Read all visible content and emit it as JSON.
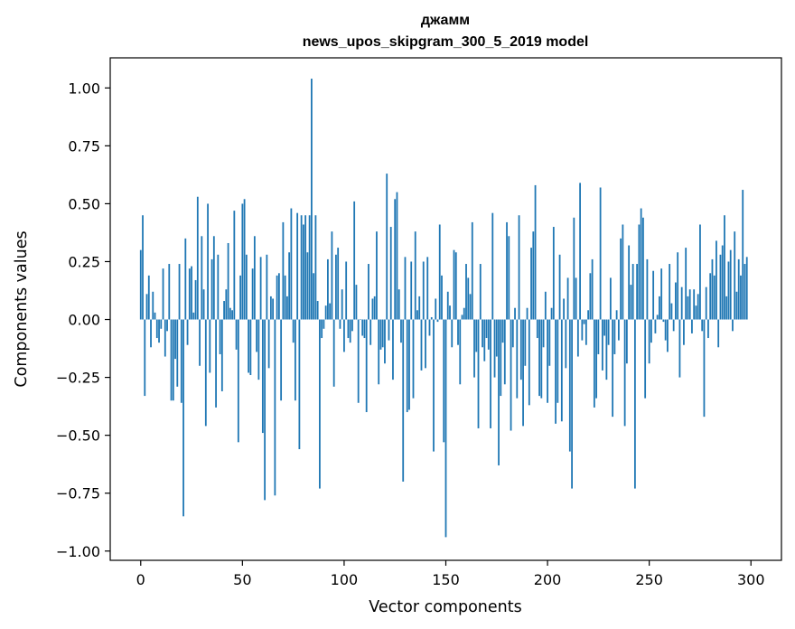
{
  "chart_data": {
    "type": "bar",
    "title_lines": [
      "джамм",
      "news_upos_skipgram_300_5_2019 model"
    ],
    "xlabel": "Vector components",
    "ylabel": "Components values",
    "xlim": [
      -15,
      315
    ],
    "ylim": [
      -1.04,
      1.13
    ],
    "xticks": [
      0,
      50,
      100,
      150,
      200,
      250,
      300
    ],
    "yticks": [
      -1.0,
      -0.75,
      -0.5,
      -0.25,
      0.0,
      0.25,
      0.5,
      0.75,
      1.0
    ],
    "ytick_labels": [
      "−1.00",
      "−0.75",
      "−0.50",
      "−0.25",
      "0.00",
      "0.25",
      "0.50",
      "0.75",
      "1.00"
    ],
    "bar_color": "#1f77b4",
    "grid": false,
    "legend": "none",
    "values": [
      0.3,
      0.45,
      -0.33,
      0.11,
      0.19,
      -0.12,
      0.12,
      0.03,
      -0.08,
      -0.1,
      -0.04,
      0.22,
      -0.16,
      -0.05,
      0.24,
      -0.35,
      -0.35,
      -0.17,
      -0.29,
      0.24,
      -0.36,
      -0.85,
      0.35,
      -0.11,
      0.22,
      0.23,
      0.03,
      0.17,
      0.53,
      -0.2,
      0.36,
      0.13,
      -0.46,
      0.5,
      -0.23,
      0.26,
      0.36,
      -0.38,
      0.28,
      -0.15,
      -0.31,
      0.08,
      0.13,
      0.33,
      0.05,
      0.04,
      0.47,
      -0.13,
      -0.53,
      0.19,
      0.5,
      0.52,
      0.28,
      -0.23,
      -0.24,
      0.22,
      0.36,
      -0.14,
      -0.26,
      0.27,
      -0.49,
      -0.78,
      0.28,
      -0.21,
      0.1,
      0.09,
      -0.76,
      0.19,
      0.2,
      -0.35,
      0.42,
      0.19,
      0.1,
      0.29,
      0.48,
      -0.1,
      -0.35,
      0.46,
      -0.56,
      0.45,
      0.41,
      0.45,
      0.29,
      0.45,
      1.04,
      0.2,
      0.45,
      0.08,
      -0.73,
      -0.08,
      -0.04,
      0.06,
      0.26,
      0.07,
      0.38,
      -0.29,
      0.28,
      0.31,
      -0.04,
      0.13,
      -0.14,
      0.25,
      -0.08,
      -0.1,
      -0.05,
      0.51,
      0.15,
      -0.36,
      0.0,
      -0.07,
      -0.08,
      -0.4,
      0.24,
      -0.11,
      0.09,
      0.1,
      0.38,
      -0.28,
      -0.13,
      -0.12,
      -0.19,
      0.63,
      -0.09,
      0.4,
      -0.26,
      0.52,
      0.55,
      0.13,
      -0.1,
      -0.7,
      0.27,
      -0.4,
      -0.39,
      0.25,
      -0.34,
      0.38,
      0.04,
      0.1,
      -0.22,
      0.25,
      -0.21,
      0.27,
      -0.07,
      0.01,
      -0.57,
      0.09,
      -0.01,
      0.41,
      0.19,
      -0.53,
      -0.94,
      0.12,
      0.06,
      -0.12,
      0.3,
      0.29,
      -0.11,
      -0.28,
      0.02,
      0.05,
      0.24,
      0.18,
      0.11,
      0.42,
      -0.25,
      -0.14,
      -0.47,
      0.24,
      -0.12,
      -0.18,
      -0.08,
      -0.13,
      -0.47,
      0.46,
      -0.25,
      -0.16,
      -0.63,
      -0.33,
      -0.1,
      -0.28,
      0.42,
      0.36,
      -0.48,
      -0.12,
      0.05,
      -0.34,
      0.45,
      -0.26,
      -0.46,
      -0.2,
      0.05,
      -0.37,
      0.31,
      0.38,
      0.58,
      -0.08,
      -0.33,
      -0.34,
      -0.12,
      0.12,
      -0.36,
      -0.2,
      0.05,
      0.4,
      -0.45,
      -0.36,
      0.28,
      -0.44,
      0.09,
      -0.21,
      0.18,
      -0.57,
      -0.73,
      0.44,
      0.18,
      -0.16,
      0.59,
      -0.09,
      -0.02,
      -0.11,
      0.04,
      0.2,
      0.26,
      -0.38,
      -0.34,
      -0.15,
      0.57,
      -0.22,
      -0.07,
      -0.26,
      -0.11,
      0.18,
      -0.42,
      -0.15,
      0.04,
      -0.09,
      0.35,
      0.41,
      -0.46,
      -0.19,
      0.32,
      0.15,
      0.24,
      -0.73,
      0.24,
      0.41,
      0.48,
      0.44,
      -0.34,
      0.26,
      -0.19,
      -0.1,
      0.21,
      -0.06,
      0.02,
      0.1,
      0.22,
      -0.01,
      -0.09,
      -0.14,
      0.24,
      0.07,
      -0.05,
      0.16,
      0.29,
      -0.25,
      0.14,
      -0.11,
      0.31,
      0.1,
      0.13,
      -0.06,
      0.13,
      0.06,
      0.11,
      0.41,
      -0.05,
      -0.42,
      0.14,
      -0.08,
      0.2,
      0.26,
      0.19,
      0.34,
      -0.12,
      0.28,
      0.32,
      0.45,
      0.1,
      0.25,
      0.3,
      -0.05,
      0.38,
      0.12,
      0.26,
      0.19,
      0.56,
      0.24,
      0.27
    ]
  }
}
